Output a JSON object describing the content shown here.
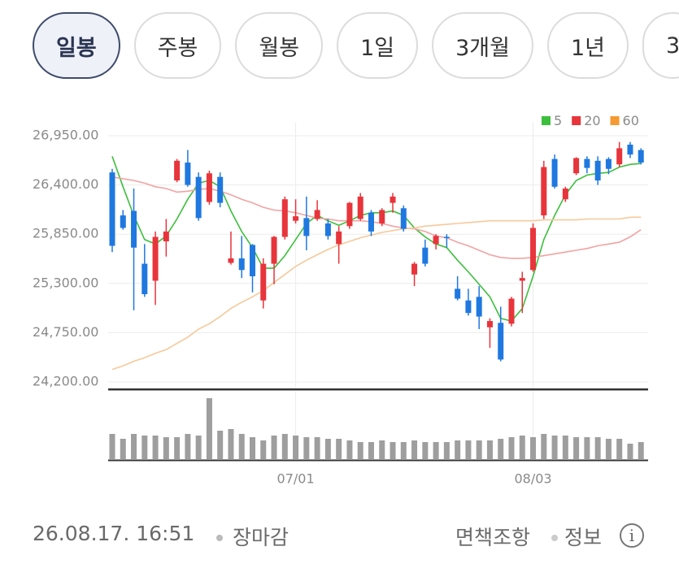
{
  "tabs": {
    "items": [
      "일봉",
      "주봉",
      "월봉",
      "1일",
      "3개월",
      "1년",
      "3"
    ],
    "selected": 0
  },
  "chart_data": {
    "type": "candlestick",
    "categories": [
      null,
      null,
      null,
      null,
      null,
      null,
      null,
      null,
      null,
      null,
      null,
      null,
      null,
      null,
      null,
      null,
      null,
      "07/01",
      null,
      null,
      null,
      null,
      null,
      null,
      null,
      null,
      null,
      null,
      null,
      null,
      null,
      null,
      null,
      null,
      null,
      null,
      null,
      null,
      null,
      "08/03",
      null,
      null,
      null,
      null,
      null,
      null,
      null,
      null,
      null,
      null
    ],
    "open": [
      26540,
      26060,
      26110,
      25520,
      25330,
      25770,
      26450,
      26650,
      26490,
      26210,
      26490,
      25530,
      25580,
      25730,
      25110,
      25520,
      25820,
      26000,
      26030,
      26020,
      25970,
      25740,
      25940,
      26020,
      26090,
      25970,
      26200,
      26140,
      25400,
      25700,
      25740,
      25820,
      25240,
      25110,
      25150,
      24810,
      24860,
      24850,
      25330,
      25450,
      26060,
      26690,
      26240,
      26530,
      26690,
      26670,
      26690,
      26630,
      26850,
      26790
    ],
    "high": [
      26580,
      26120,
      26360,
      25740,
      25880,
      26020,
      26690,
      26790,
      26540,
      26560,
      26540,
      25880,
      25830,
      25740,
      25580,
      25830,
      26270,
      26240,
      26270,
      26230,
      26020,
      25940,
      26210,
      26310,
      26120,
      26140,
      26310,
      26170,
      25540,
      25790,
      25850,
      25850,
      25380,
      25240,
      25270,
      24910,
      25040,
      25150,
      25430,
      25970,
      26670,
      26740,
      26380,
      26710,
      26720,
      26720,
      26710,
      26880,
      26880,
      26810
    ],
    "low": [
      25650,
      25900,
      25000,
      25150,
      25060,
      25600,
      26430,
      26380,
      26000,
      26180,
      26150,
      25510,
      25360,
      25200,
      25020,
      25290,
      25790,
      25970,
      25670,
      26000,
      25790,
      25520,
      25910,
      26000,
      25830,
      25940,
      26090,
      25880,
      25270,
      25490,
      25680,
      25700,
      25110,
      24940,
      24790,
      24580,
      24430,
      24820,
      24970,
      25430,
      26020,
      26360,
      26210,
      26510,
      26530,
      26400,
      26520,
      26600,
      26700,
      26630
    ],
    "close": [
      25720,
      25920,
      25700,
      25180,
      25820,
      25880,
      26670,
      26400,
      26030,
      26530,
      26200,
      25580,
      25450,
      25380,
      25520,
      25820,
      26240,
      26050,
      25830,
      26120,
      25830,
      25880,
      26200,
      26270,
      25880,
      26120,
      26270,
      25910,
      25520,
      25520,
      25830,
      25810,
      25130,
      24970,
      24930,
      24880,
      24450,
      25130,
      25360,
      25920,
      26600,
      26380,
      26360,
      26700,
      26590,
      26450,
      26580,
      26810,
      26740,
      26650
    ],
    "up_color": "#e8343b",
    "down_color": "#1f78e0",
    "series": [
      {
        "name": "5",
        "color": "#3cbf3c",
        "values": [
          26720,
          26380,
          26060,
          25790,
          25740,
          25830,
          26020,
          26240,
          26420,
          26450,
          26380,
          26110,
          25880,
          25700,
          25470,
          25470,
          25610,
          25790,
          25970,
          26060,
          26000,
          25950,
          26000,
          26060,
          26090,
          26090,
          26110,
          26060,
          25920,
          25820,
          25740,
          25700,
          25560,
          25430,
          25290,
          25150,
          24910,
          24880,
          25020,
          25380,
          25790,
          26060,
          26290,
          26450,
          26510,
          26530,
          26540,
          26600,
          26630,
          26640
        ]
      },
      {
        "name": "20",
        "color": "#e8343b",
        "line_color": "#f1a3a3",
        "values": [
          26490,
          26470,
          26450,
          26420,
          26380,
          26360,
          26320,
          26330,
          26350,
          26360,
          26330,
          26290,
          26240,
          26200,
          26150,
          26120,
          26110,
          26090,
          26060,
          26030,
          26020,
          26000,
          26000,
          26000,
          25990,
          25970,
          25940,
          25920,
          25910,
          25880,
          25830,
          25810,
          25760,
          25720,
          25670,
          25620,
          25590,
          25580,
          25580,
          25590,
          25610,
          25630,
          25650,
          25670,
          25690,
          25720,
          25740,
          25760,
          25820,
          25900
        ]
      },
      {
        "name": "60",
        "color": "#f59a32",
        "line_color": "#f6c99a",
        "values": [
          24340,
          24380,
          24430,
          24470,
          24520,
          24560,
          24630,
          24700,
          24790,
          24850,
          24930,
          25020,
          25090,
          25150,
          25220,
          25310,
          25400,
          25490,
          25560,
          25620,
          25680,
          25730,
          25770,
          25810,
          25840,
          25870,
          25890,
          25910,
          25920,
          25940,
          25950,
          25960,
          25970,
          25980,
          25990,
          26000,
          26000,
          26000,
          26000,
          26000,
          26010,
          26010,
          26010,
          26010,
          26020,
          26020,
          26020,
          26020,
          26040,
          26040
        ]
      }
    ],
    "volume": {
      "color": "#9e9e9e",
      "values": [
        32,
        26,
        32,
        30,
        30,
        28,
        28,
        32,
        30,
        76,
        36,
        38,
        32,
        28,
        24,
        30,
        32,
        30,
        28,
        28,
        26,
        26,
        24,
        22,
        22,
        24,
        22,
        22,
        24,
        22,
        22,
        22,
        24,
        24,
        24,
        24,
        26,
        28,
        30,
        28,
        32,
        30,
        30,
        28,
        28,
        28,
        26,
        26,
        20,
        22
      ]
    },
    "ylim": [
      24130,
      27010
    ],
    "yticks": [
      {
        "value": 24200,
        "label": "24,200.00"
      },
      {
        "value": 24750,
        "label": "24,750.00"
      },
      {
        "value": 25300,
        "label": "25,300.00"
      },
      {
        "value": 25850,
        "label": "25,850.00"
      },
      {
        "value": 26400,
        "label": "26,400.00"
      },
      {
        "value": 26950,
        "label": "26,950.00"
      }
    ],
    "grid": true
  },
  "footer": {
    "timestamp": "26.08.17. 16:51",
    "status": "장마감",
    "disclaimer": "면책조항",
    "info": "정보"
  }
}
